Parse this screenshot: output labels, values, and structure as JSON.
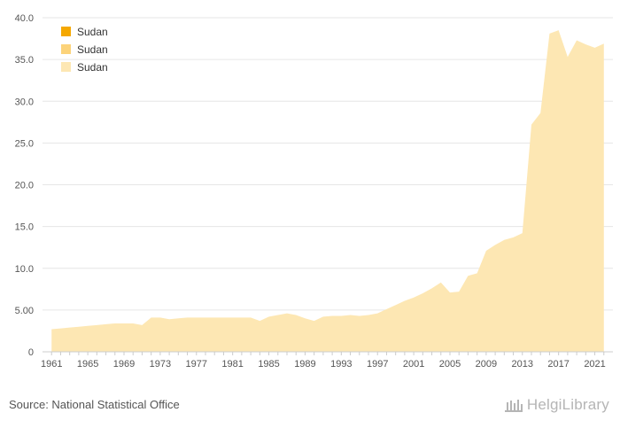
{
  "chart_data": {
    "type": "area",
    "title": "",
    "xlabel": "",
    "ylabel": "",
    "ylim": [
      0,
      40
    ],
    "y_ticks": [
      "0",
      "5.00",
      "10.0",
      "15.0",
      "20.0",
      "25.0",
      "30.0",
      "35.0",
      "40.0"
    ],
    "x_ticks": [
      "1961",
      "1965",
      "1969",
      "1973",
      "1977",
      "1981",
      "1985",
      "1989",
      "1993",
      "1997",
      "2001",
      "2005",
      "2009",
      "2013",
      "2017",
      "2021"
    ],
    "grid": "horizontal",
    "legend_position": "top-left",
    "legend": [
      {
        "label": "Sudan",
        "color": "#f5a800"
      },
      {
        "label": "Sudan",
        "color": "#fcd37a"
      },
      {
        "label": "Sudan",
        "color": "#fde7b3"
      }
    ],
    "series": [
      {
        "name": "Sudan",
        "color": "#fde7b3",
        "x": [
          1961,
          1962,
          1963,
          1964,
          1965,
          1966,
          1967,
          1968,
          1969,
          1970,
          1971,
          1972,
          1973,
          1974,
          1975,
          1976,
          1977,
          1978,
          1979,
          1980,
          1981,
          1982,
          1983,
          1984,
          1985,
          1986,
          1987,
          1988,
          1989,
          1990,
          1991,
          1992,
          1993,
          1994,
          1995,
          1996,
          1997,
          1998,
          1999,
          2000,
          2001,
          2002,
          2003,
          2004,
          2005,
          2006,
          2007,
          2008,
          2009,
          2010,
          2011,
          2012,
          2013,
          2014,
          2015,
          2016,
          2017,
          2018,
          2019,
          2020,
          2021,
          2022
        ],
        "values": [
          2.7,
          2.8,
          2.9,
          3.0,
          3.1,
          3.2,
          3.3,
          3.4,
          3.4,
          3.4,
          3.2,
          4.1,
          4.1,
          3.9,
          4.0,
          4.1,
          4.1,
          4.1,
          4.1,
          4.1,
          4.1,
          4.1,
          4.1,
          3.7,
          4.2,
          4.4,
          4.6,
          4.4,
          4.0,
          3.7,
          4.2,
          4.3,
          4.3,
          4.4,
          4.3,
          4.4,
          4.6,
          5.1,
          5.6,
          6.1,
          6.5,
          7.0,
          7.6,
          8.3,
          7.1,
          7.2,
          9.1,
          9.4,
          12.1,
          12.8,
          13.4,
          13.7,
          14.2,
          27.2,
          28.6,
          38.1,
          38.5,
          35.3,
          37.3,
          36.8,
          36.4,
          36.9
        ]
      }
    ]
  },
  "footer": {
    "source": "Source: National Statistical Office",
    "logo_text": "HelgiLibrary"
  }
}
